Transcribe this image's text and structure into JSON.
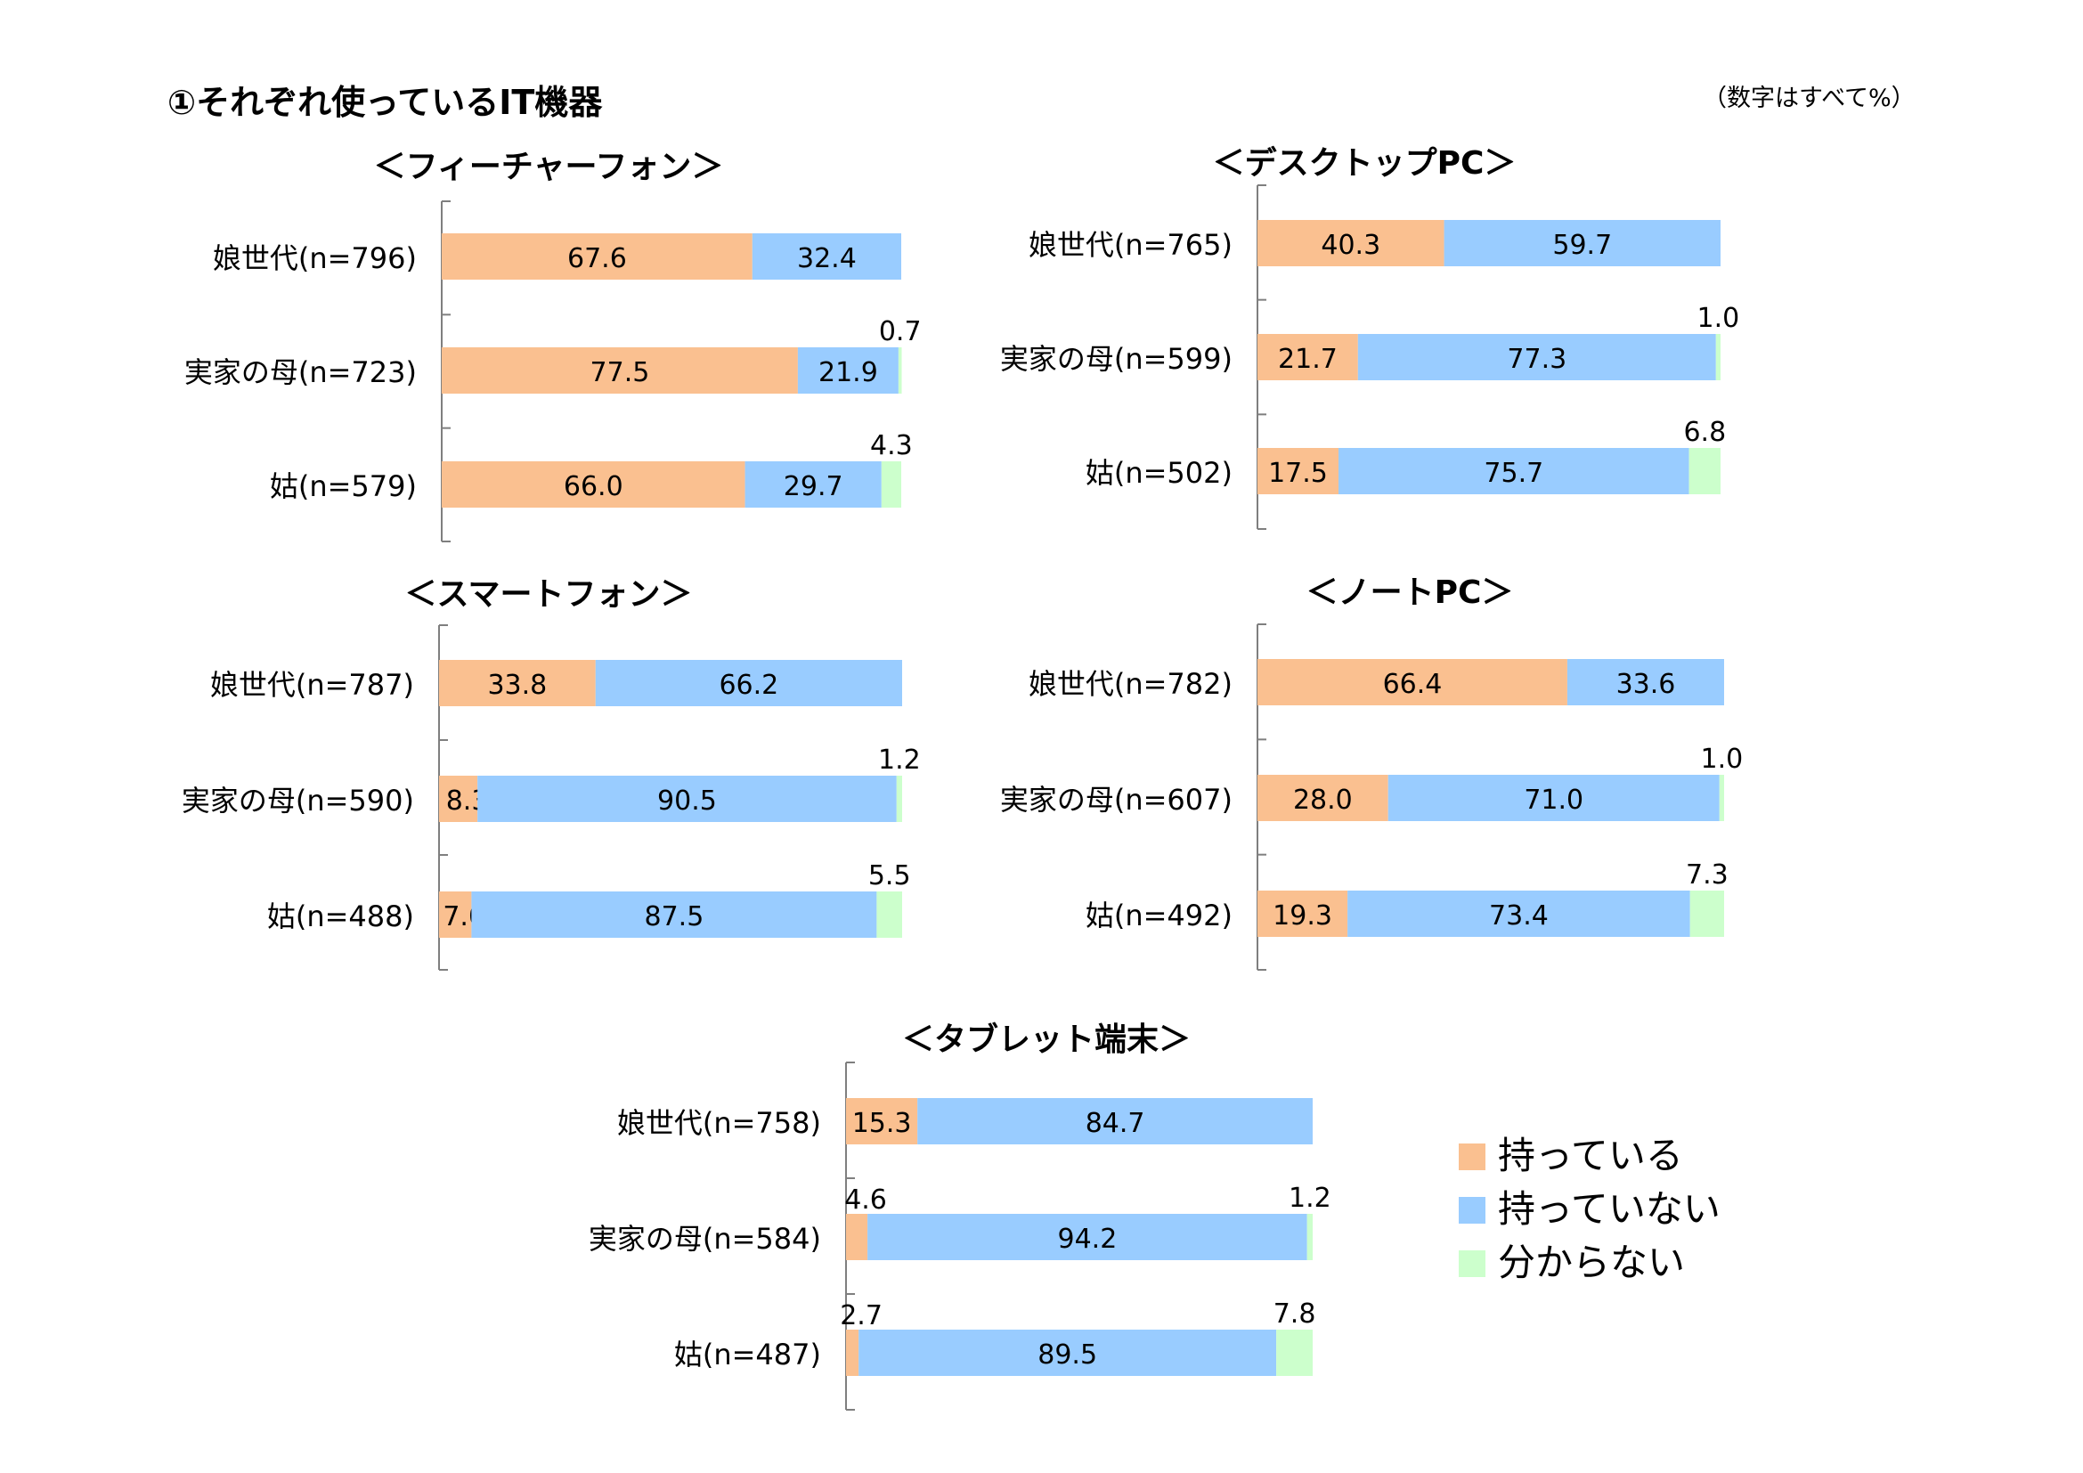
{
  "page": {
    "title": "①それぞれ使っているIT機器",
    "note": "（数字はすべて%）"
  },
  "legend": [
    {
      "label": "持っている",
      "color": "#FAC090"
    },
    {
      "label": "持っていない",
      "color": "#99CCFF"
    },
    {
      "label": "分からない",
      "color": "#CCFFCC"
    }
  ],
  "chart_data": [
    {
      "type": "bar",
      "orientation": "horizontal",
      "stacked": true,
      "title": "＜フィーチャーフォン＞",
      "categories": [
        "娘世代(n=796)",
        "実家の母(n=723)",
        "姑(n=579)"
      ],
      "series": [
        {
          "name": "持っている",
          "values": [
            67.6,
            77.5,
            66.0
          ]
        },
        {
          "name": "持っていない",
          "values": [
            32.4,
            21.9,
            29.7
          ]
        },
        {
          "name": "分からない",
          "values": [
            null,
            0.7,
            4.3
          ]
        }
      ],
      "xlim": [
        0,
        100
      ],
      "grid": false
    },
    {
      "type": "bar",
      "orientation": "horizontal",
      "stacked": true,
      "title": "＜デスクトップPC＞",
      "categories": [
        "娘世代(n=765)",
        "実家の母(n=599)",
        "姑(n=502)"
      ],
      "series": [
        {
          "name": "持っている",
          "values": [
            40.3,
            21.7,
            17.5
          ]
        },
        {
          "name": "持っていない",
          "values": [
            59.7,
            77.3,
            75.7
          ]
        },
        {
          "name": "分からない",
          "values": [
            null,
            1.0,
            6.8
          ]
        }
      ],
      "xlim": [
        0,
        100
      ],
      "grid": false
    },
    {
      "type": "bar",
      "orientation": "horizontal",
      "stacked": true,
      "title": "＜スマートフォン＞",
      "categories": [
        "娘世代(n=787)",
        "実家の母(n=590)",
        "姑(n=488)"
      ],
      "series": [
        {
          "name": "持っている",
          "values": [
            33.8,
            8.3,
            7.0
          ]
        },
        {
          "name": "持っていない",
          "values": [
            66.2,
            90.5,
            87.5
          ]
        },
        {
          "name": "分からない",
          "values": [
            null,
            1.2,
            5.5
          ]
        }
      ],
      "xlim": [
        0,
        100
      ],
      "grid": false
    },
    {
      "type": "bar",
      "orientation": "horizontal",
      "stacked": true,
      "title": "＜ノートPC＞",
      "categories": [
        "娘世代(n=782)",
        "実家の母(n=607)",
        "姑(n=492)"
      ],
      "series": [
        {
          "name": "持っている",
          "values": [
            66.4,
            28.0,
            19.3
          ]
        },
        {
          "name": "持っていない",
          "values": [
            33.6,
            71.0,
            73.4
          ]
        },
        {
          "name": "分からない",
          "values": [
            null,
            1.0,
            7.3
          ]
        }
      ],
      "xlim": [
        0,
        100
      ],
      "grid": false
    },
    {
      "type": "bar",
      "orientation": "horizontal",
      "stacked": true,
      "title": "＜タブレット端末＞",
      "categories": [
        "娘世代(n=758)",
        "実家の母(n=584)",
        "姑(n=487)"
      ],
      "series": [
        {
          "name": "持っている",
          "values": [
            15.3,
            4.6,
            2.7
          ]
        },
        {
          "name": "持っていない",
          "values": [
            84.7,
            94.2,
            89.5
          ]
        },
        {
          "name": "分からない",
          "values": [
            null,
            1.2,
            7.8
          ]
        }
      ],
      "xlim": [
        0,
        100
      ],
      "grid": false
    }
  ]
}
